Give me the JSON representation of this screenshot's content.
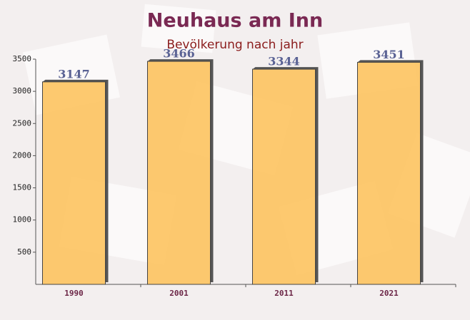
{
  "chart_data": {
    "type": "bar",
    "title": "Neuhaus am Inn",
    "subtitle": "Bevölkerung nach jahr",
    "categories": [
      "1990",
      "2001",
      "2011",
      "2021"
    ],
    "values": [
      3147,
      3466,
      3344,
      3451
    ],
    "color": "#fdc35f",
    "ylim": [
      0,
      3500
    ],
    "yticks": [
      500,
      1000,
      1500,
      2000,
      2500,
      3000,
      3500
    ],
    "grid": false
  }
}
